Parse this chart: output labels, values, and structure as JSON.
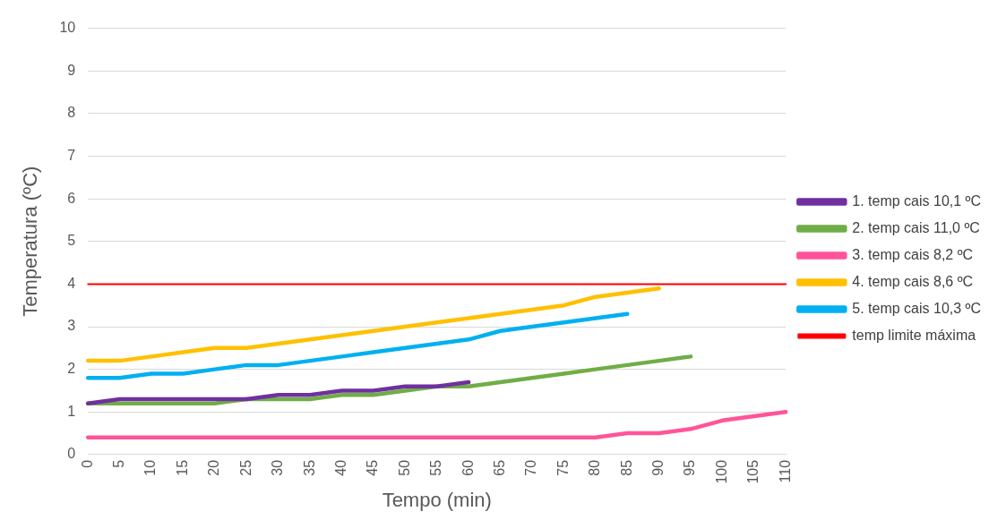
{
  "chart_data": {
    "type": "line",
    "xlabel": "Tempo (min)",
    "ylabel": "Temperatura (ºC)",
    "categories": [
      "0",
      "5",
      "10",
      "15",
      "20",
      "25",
      "30",
      "35",
      "40",
      "45",
      "50",
      "55",
      "60",
      "65",
      "70",
      "75",
      "80",
      "85",
      "90",
      "95",
      "100",
      "105",
      "110"
    ],
    "ylim": [
      0,
      10
    ],
    "yticks": [
      0,
      1,
      2,
      3,
      4,
      5,
      6,
      7,
      8,
      9,
      10
    ],
    "grid": "y",
    "legend": "right",
    "marker": "none",
    "series": [
      {
        "name": "1. temp cais 10,1 ºC",
        "color": "#7030a0",
        "values": [
          1.2,
          1.3,
          1.3,
          1.3,
          1.3,
          1.3,
          1.4,
          1.4,
          1.5,
          1.5,
          1.6,
          1.6,
          1.7,
          null,
          null,
          null,
          null,
          null,
          null,
          null,
          null,
          null,
          null
        ]
      },
      {
        "name": "2. temp cais 11,0 ºC",
        "color": "#70ad47",
        "values": [
          1.2,
          1.2,
          1.2,
          1.2,
          1.2,
          1.3,
          1.3,
          1.3,
          1.4,
          1.4,
          1.5,
          1.6,
          1.6,
          1.7,
          1.8,
          1.9,
          2.0,
          2.1,
          2.2,
          2.3,
          null,
          null,
          null
        ]
      },
      {
        "name": "3. temp cais 8,2 ºC",
        "color": "#ff5499",
        "values": [
          0.4,
          0.4,
          0.4,
          0.4,
          0.4,
          0.4,
          0.4,
          0.4,
          0.4,
          0.4,
          0.4,
          0.4,
          0.4,
          0.4,
          0.4,
          0.4,
          0.4,
          0.5,
          0.5,
          0.6,
          0.8,
          0.9,
          1.0
        ]
      },
      {
        "name": "4. temp cais 8,6 ºC",
        "color": "#ffc000",
        "values": [
          2.2,
          2.2,
          2.3,
          2.4,
          2.5,
          2.5,
          2.6,
          2.7,
          2.8,
          2.9,
          3.0,
          3.1,
          3.2,
          3.3,
          3.4,
          3.5,
          3.7,
          3.8,
          3.9,
          null,
          null,
          null,
          null
        ]
      },
      {
        "name": "5. temp cais 10,3 ºC",
        "color": "#00b0f0",
        "values": [
          1.8,
          1.8,
          1.9,
          1.9,
          2.0,
          2.1,
          2.1,
          2.2,
          2.3,
          2.4,
          2.5,
          2.6,
          2.7,
          2.9,
          3.0,
          3.1,
          3.2,
          3.3,
          null,
          null,
          null,
          null,
          null
        ]
      },
      {
        "name": "temp limite máxima",
        "color": "#ff0000",
        "values": [
          4,
          4,
          4,
          4,
          4,
          4,
          4,
          4,
          4,
          4,
          4,
          4,
          4,
          4,
          4,
          4,
          4,
          4,
          4,
          4,
          4,
          4,
          4
        ]
      }
    ]
  }
}
